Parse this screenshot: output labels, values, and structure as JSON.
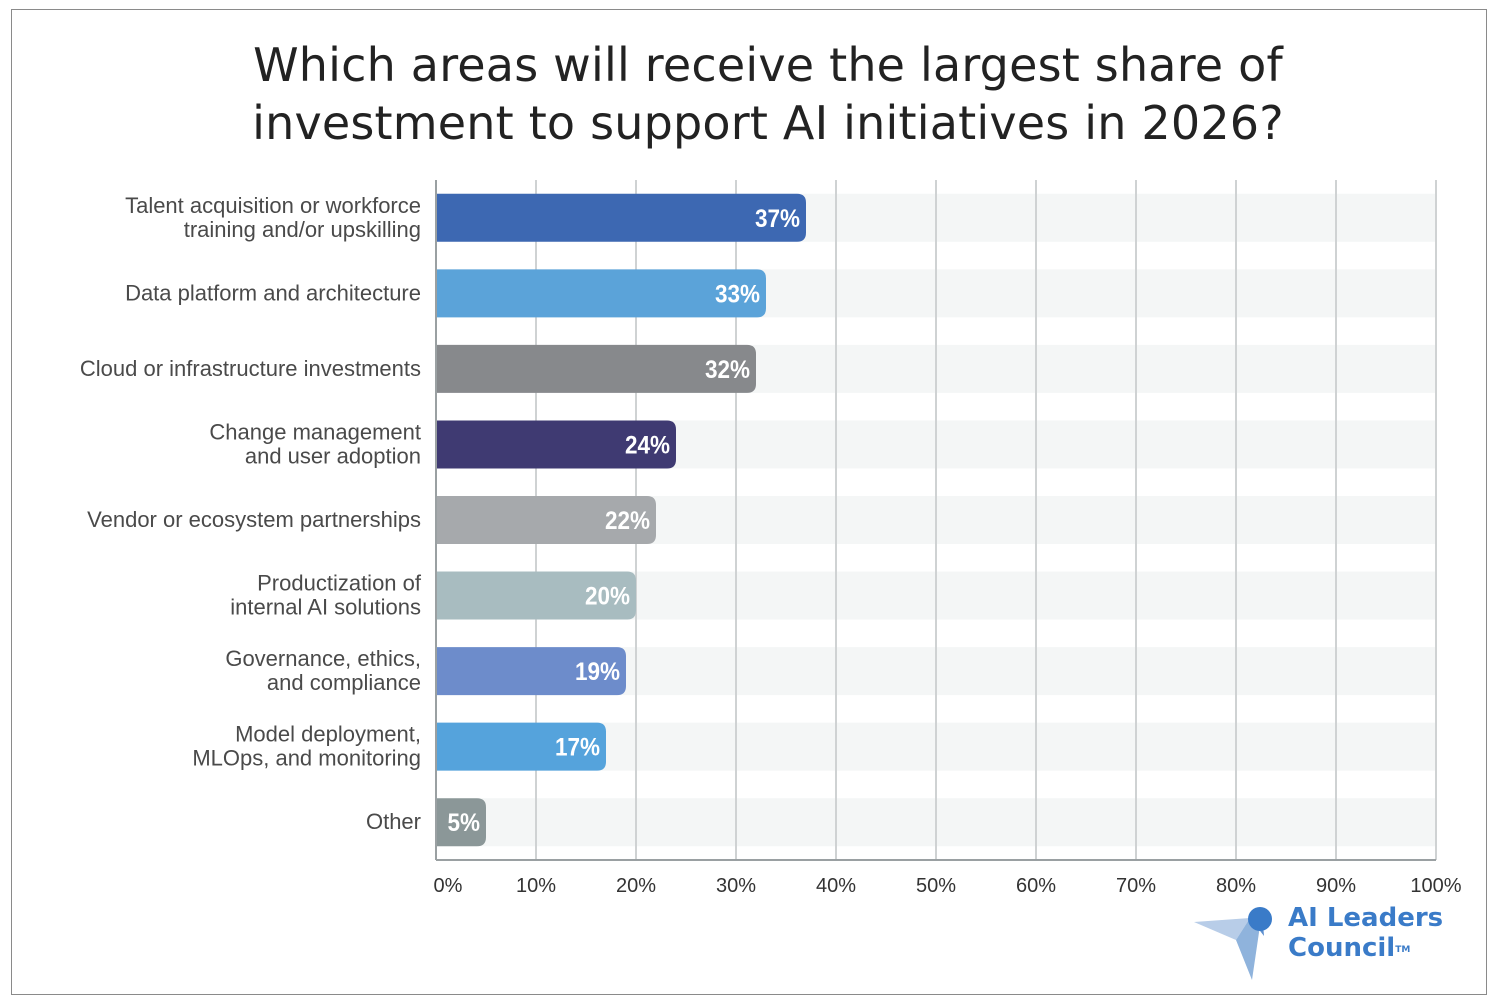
{
  "chart_data": {
    "type": "bar",
    "orientation": "horizontal",
    "title_lines": [
      "Which areas will receive the largest share of",
      "investment to support AI initiatives in 2026?"
    ],
    "categories": [
      [
        "Talent acquisition or workforce",
        "training and/or upskilling"
      ],
      [
        "Data platform and architecture"
      ],
      [
        "Cloud or infrastructure investments"
      ],
      [
        "Change management",
        "and user adoption"
      ],
      [
        "Vendor or ecosystem partnerships"
      ],
      [
        "Productization of",
        "internal AI solutions"
      ],
      [
        "Governance, ethics,",
        "and compliance"
      ],
      [
        "Model deployment,",
        "MLOps, and monitoring"
      ],
      [
        "Other"
      ]
    ],
    "values": [
      37,
      33,
      32,
      24,
      22,
      20,
      19,
      17,
      5
    ],
    "value_labels": [
      "37%",
      "33%",
      "32%",
      "24%",
      "22%",
      "20%",
      "19%",
      "17%",
      "5%"
    ],
    "bar_colors": [
      "#3d68b2",
      "#5ba3d9",
      "#87898c",
      "#3f3a72",
      "#a6a9ac",
      "#a8bcc0",
      "#6d8ccb",
      "#55a3dc",
      "#8b9798"
    ],
    "xlim": [
      0,
      100
    ],
    "x_ticks": [
      "0%",
      "10%",
      "20%",
      "30%",
      "40%",
      "50%",
      "60%",
      "70%",
      "80%",
      "90%",
      "100%"
    ],
    "grid": true,
    "xlabel": "",
    "ylabel": ""
  },
  "logo": {
    "line1": "AI Leaders",
    "line2": "Council",
    "trademark": "TM"
  }
}
